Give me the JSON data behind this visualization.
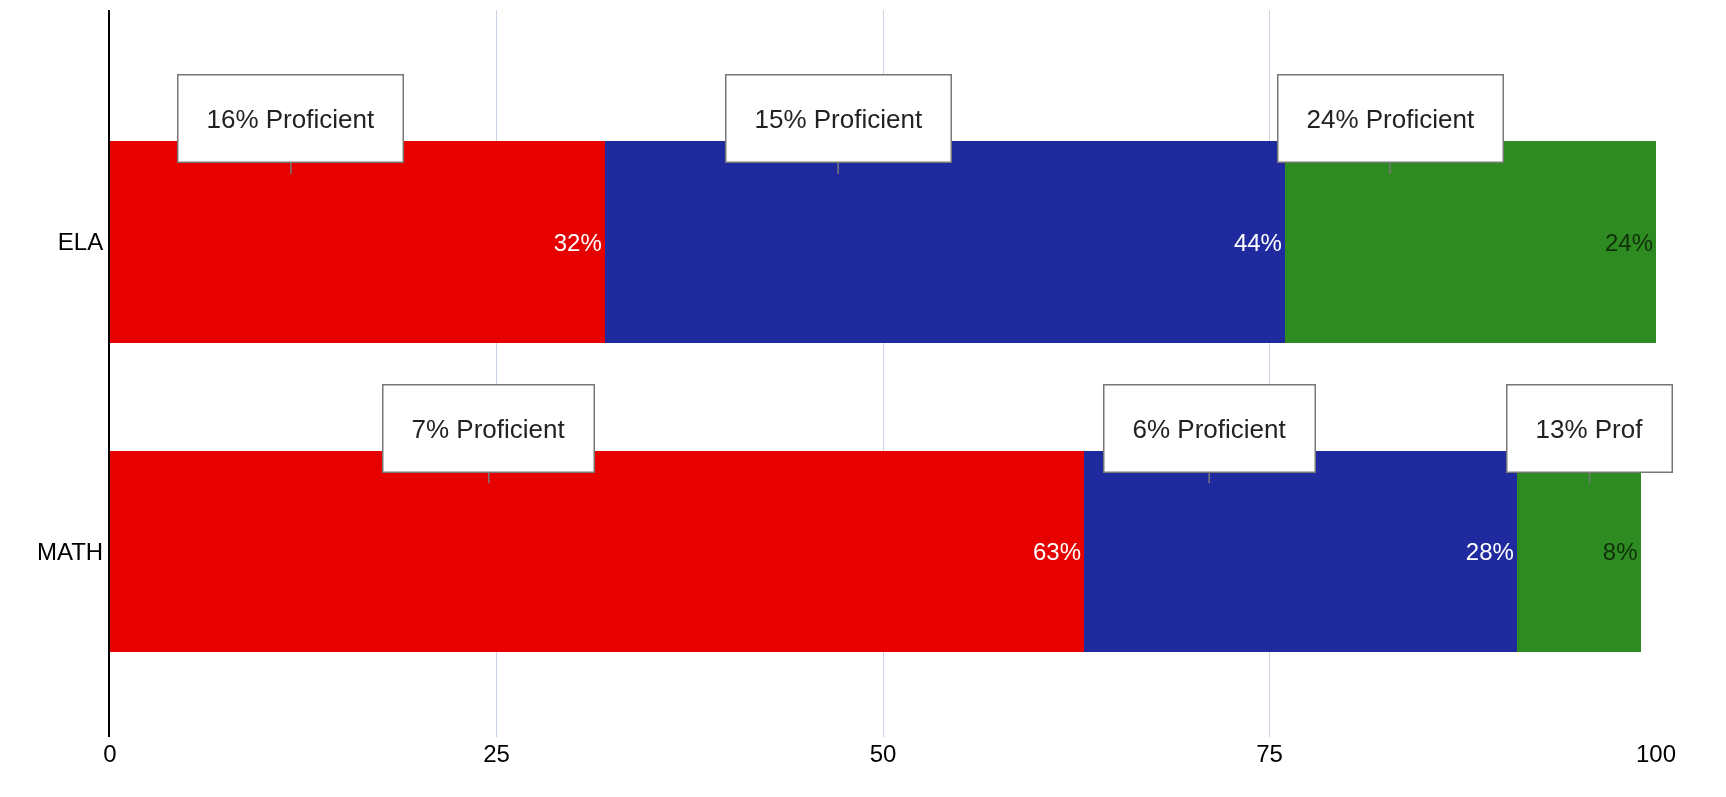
{
  "chart_data": {
    "type": "bar",
    "orientation": "horizontal",
    "stacked": true,
    "categories": [
      "ELA",
      "MATH"
    ],
    "series": [
      {
        "color": "#e60000",
        "values": [
          32,
          63
        ],
        "value_labels": [
          "32%",
          "63%"
        ]
      },
      {
        "color": "#1f2a9e",
        "values": [
          44,
          28
        ],
        "value_labels": [
          "44%",
          "28%"
        ]
      },
      {
        "color": "#2e8b22",
        "values": [
          24,
          8
        ],
        "value_labels": [
          "24%",
          "8%"
        ]
      }
    ],
    "xlim": [
      0,
      100
    ],
    "xticks": [
      0,
      25,
      50,
      75,
      100
    ],
    "grid": "x",
    "legend": false,
    "annotations": [
      "16% Proficient",
      "15% Proficient",
      "24% Proficient",
      "7% Proficient",
      "6% Proficient",
      "13% Prof"
    ]
  }
}
